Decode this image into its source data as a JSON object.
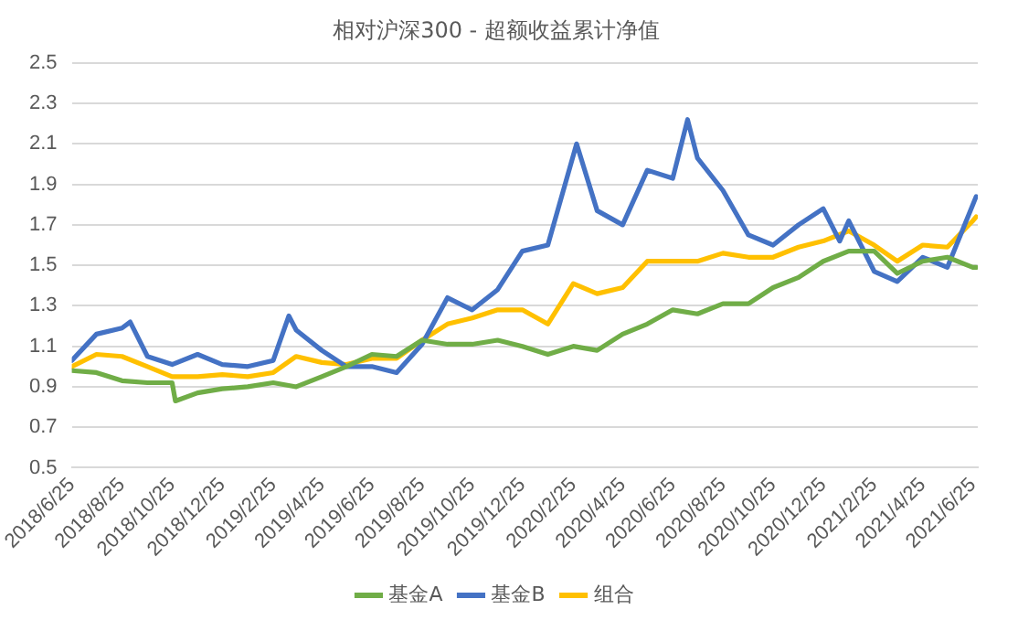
{
  "chart_data": {
    "type": "line",
    "title": "相对沪深300 - 超额收益累计净值",
    "xlim": [
      "2018-06-25",
      "2021-07-01"
    ],
    "ylim": [
      0.5,
      2.5
    ],
    "yticks": [
      0.5,
      0.7,
      0.9,
      1.1,
      1.3,
      1.5,
      1.7,
      1.9,
      2.1,
      2.3,
      2.5
    ],
    "xticks": [
      {
        "value": "2018-06-25",
        "label": "2018/6/25"
      },
      {
        "value": "2018-08-25",
        "label": "2018/8/25"
      },
      {
        "value": "2018-10-25",
        "label": "2018/10/25"
      },
      {
        "value": "2018-12-25",
        "label": "2018/12/25"
      },
      {
        "value": "2019-02-25",
        "label": "2019/2/25"
      },
      {
        "value": "2019-04-25",
        "label": "2019/4/25"
      },
      {
        "value": "2019-06-25",
        "label": "2019/6/25"
      },
      {
        "value": "2019-08-25",
        "label": "2019/8/25"
      },
      {
        "value": "2019-10-25",
        "label": "2019/10/25"
      },
      {
        "value": "2019-12-25",
        "label": "2019/12/25"
      },
      {
        "value": "2020-02-25",
        "label": "2020/2/25"
      },
      {
        "value": "2020-04-25",
        "label": "2020/4/25"
      },
      {
        "value": "2020-06-25",
        "label": "2020/6/25"
      },
      {
        "value": "2020-08-25",
        "label": "2020/8/25"
      },
      {
        "value": "2020-10-25",
        "label": "2020/10/25"
      },
      {
        "value": "2020-12-25",
        "label": "2020/12/25"
      },
      {
        "value": "2021-02-25",
        "label": "2021/2/25"
      },
      {
        "value": "2021-04-25",
        "label": "2021/4/25"
      },
      {
        "value": "2021-06-25",
        "label": "2021/6/25"
      }
    ],
    "grid": "y",
    "legend": "bottom",
    "marker": "none",
    "line_style": "solid",
    "series": [
      {
        "name": "基金A",
        "color": "#70ad47",
        "x": [
          "2018-06-25",
          "2018-07-25",
          "2018-08-25",
          "2018-09-25",
          "2018-10-25",
          "2018-10-29",
          "2018-11-25",
          "2018-12-25",
          "2019-01-25",
          "2019-02-25",
          "2019-03-25",
          "2019-04-25",
          "2019-05-25",
          "2019-06-25",
          "2019-07-25",
          "2019-08-25",
          "2019-09-25",
          "2019-10-25",
          "2019-11-25",
          "2019-12-25",
          "2020-01-25",
          "2020-02-25",
          "2020-03-25",
          "2020-04-25",
          "2020-05-25",
          "2020-06-25",
          "2020-07-25",
          "2020-08-25",
          "2020-09-25",
          "2020-10-25",
          "2020-11-25",
          "2020-12-25",
          "2021-01-25",
          "2021-02-25",
          "2021-03-25",
          "2021-04-25",
          "2021-05-25",
          "2021-06-25",
          "2021-06-29"
        ],
        "values": [
          0.98,
          0.97,
          0.93,
          0.92,
          0.92,
          0.83,
          0.87,
          0.89,
          0.9,
          0.92,
          0.9,
          0.95,
          1.0,
          1.06,
          1.05,
          1.13,
          1.11,
          1.11,
          1.13,
          1.1,
          1.06,
          1.1,
          1.08,
          1.16,
          1.21,
          1.28,
          1.26,
          1.31,
          1.31,
          1.39,
          1.44,
          1.52,
          1.57,
          1.57,
          1.46,
          1.52,
          1.54,
          1.49,
          1.49
        ]
      },
      {
        "name": "基金B",
        "color": "#4472c4",
        "x": [
          "2018-06-25",
          "2018-07-25",
          "2018-08-25",
          "2018-09-04",
          "2018-09-25",
          "2018-10-25",
          "2018-11-25",
          "2018-12-25",
          "2019-01-25",
          "2019-02-25",
          "2019-03-16",
          "2019-03-25",
          "2019-04-25",
          "2019-05-25",
          "2019-06-25",
          "2019-07-25",
          "2019-08-25",
          "2019-09-25",
          "2019-10-25",
          "2019-11-25",
          "2019-12-25",
          "2020-01-25",
          "2020-02-29",
          "2020-03-25",
          "2020-04-25",
          "2020-05-25",
          "2020-06-25",
          "2020-07-13",
          "2020-07-25",
          "2020-08-25",
          "2020-09-25",
          "2020-10-25",
          "2020-11-25",
          "2020-12-25",
          "2021-01-14",
          "2021-01-25",
          "2021-02-25",
          "2021-03-25",
          "2021-04-25",
          "2021-05-25",
          "2021-06-25",
          "2021-06-29"
        ],
        "values": [
          1.03,
          1.16,
          1.19,
          1.22,
          1.05,
          1.01,
          1.06,
          1.01,
          1.0,
          1.03,
          1.25,
          1.18,
          1.08,
          1.0,
          1.0,
          0.97,
          1.11,
          1.34,
          1.28,
          1.38,
          1.57,
          1.6,
          2.1,
          1.77,
          1.7,
          1.97,
          1.93,
          2.22,
          2.03,
          1.87,
          1.65,
          1.6,
          1.7,
          1.78,
          1.62,
          1.72,
          1.47,
          1.42,
          1.54,
          1.49,
          1.8,
          1.84
        ]
      },
      {
        "name": "组合",
        "color": "#ffc000",
        "x": [
          "2018-06-25",
          "2018-07-25",
          "2018-08-25",
          "2018-09-25",
          "2018-10-25",
          "2018-11-25",
          "2018-12-25",
          "2019-01-25",
          "2019-02-25",
          "2019-03-25",
          "2019-04-25",
          "2019-05-25",
          "2019-06-25",
          "2019-07-25",
          "2019-08-25",
          "2019-09-25",
          "2019-10-25",
          "2019-11-25",
          "2019-12-25",
          "2020-01-25",
          "2020-02-25",
          "2020-03-25",
          "2020-04-25",
          "2020-05-25",
          "2020-06-25",
          "2020-07-25",
          "2020-08-25",
          "2020-09-25",
          "2020-10-25",
          "2020-11-25",
          "2020-12-25",
          "2021-01-25",
          "2021-02-25",
          "2021-03-25",
          "2021-04-25",
          "2021-05-25",
          "2021-06-25",
          "2021-06-29"
        ],
        "values": [
          1.0,
          1.06,
          1.05,
          1.0,
          0.95,
          0.95,
          0.96,
          0.95,
          0.97,
          1.05,
          1.02,
          1.01,
          1.04,
          1.04,
          1.13,
          1.21,
          1.24,
          1.28,
          1.28,
          1.21,
          1.41,
          1.36,
          1.39,
          1.52,
          1.52,
          1.52,
          1.56,
          1.54,
          1.54,
          1.59,
          1.62,
          1.67,
          1.6,
          1.52,
          1.6,
          1.59,
          1.72,
          1.74
        ]
      }
    ]
  }
}
